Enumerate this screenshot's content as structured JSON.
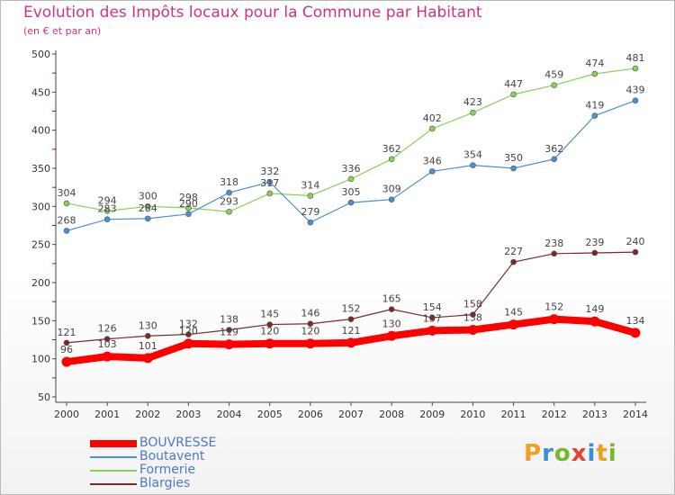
{
  "header": {
    "title": "Evolution des Impôts locaux pour la Commune par Habitant",
    "subtitle": "(en € et par an)"
  },
  "logo": {
    "text": "Proxiti",
    "letters": [
      "P",
      "r",
      "o",
      "x",
      "i",
      "t",
      "i"
    ],
    "colors": [
      "#f0a020",
      "#3a8fd6",
      "#78b82a",
      "#e8402a",
      "#3a8fd6",
      "#f0a020",
      "#78b82a"
    ]
  },
  "chart_data": {
    "type": "line",
    "x": [
      "2000",
      "2001",
      "2002",
      "2003",
      "2004",
      "2005",
      "2006",
      "2007",
      "2008",
      "2009",
      "2010",
      "2011",
      "2012",
      "2013",
      "2014"
    ],
    "ylim": [
      50,
      500
    ],
    "yticks": [
      50,
      100,
      150,
      200,
      250,
      300,
      350,
      400,
      450,
      500
    ],
    "grid": false,
    "legend": "bottom-left",
    "series": [
      {
        "name": "BOUVRESSE",
        "color": "#ff0000",
        "bold": true,
        "values": [
          96,
          103,
          101,
          120,
          119,
          120,
          120,
          121,
          130,
          137,
          138,
          145,
          152,
          149,
          134
        ]
      },
      {
        "name": "Boutavent",
        "color": "#4a90d0",
        "values": [
          268,
          283,
          284,
          290,
          318,
          332,
          279,
          305,
          309,
          346,
          354,
          350,
          362,
          419,
          439
        ]
      },
      {
        "name": "Formerie",
        "color": "#88d058",
        "values": [
          304,
          294,
          300,
          298,
          293,
          317,
          314,
          336,
          362,
          402,
          423,
          447,
          459,
          474,
          481
        ]
      },
      {
        "name": "Blargies",
        "color": "#7a2a2a",
        "values": [
          121,
          126,
          130,
          132,
          138,
          145,
          146,
          152,
          165,
          154,
          158,
          227,
          238,
          239,
          240
        ]
      }
    ]
  }
}
